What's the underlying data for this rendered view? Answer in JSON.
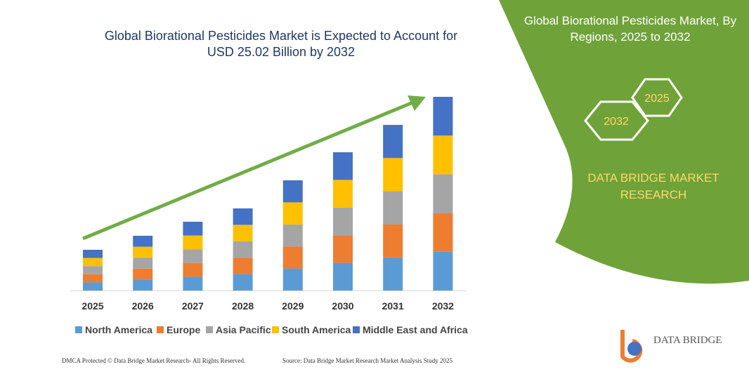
{
  "chart_data": {
    "type": "bar",
    "stacked": true,
    "title": "Global Biorational Pesticides Market is Expected to Account for USD 25.02 Billion by 2032",
    "categories": [
      "2025",
      "2026",
      "2027",
      "2028",
      "2029",
      "2030",
      "2031",
      "2032"
    ],
    "series": [
      {
        "name": "North America",
        "color": "#5b9bd5",
        "values": [
          11.6,
          15.6,
          19.6,
          23.4,
          31.4,
          39.4,
          47.2,
          55.2
        ]
      },
      {
        "name": "Europe",
        "color": "#ed7d31",
        "values": [
          11.6,
          15.6,
          19.6,
          23.4,
          31.4,
          39.4,
          47.2,
          55.2
        ]
      },
      {
        "name": "Asia Pacific",
        "color": "#a5a5a5",
        "values": [
          11.6,
          15.6,
          19.6,
          23.4,
          31.4,
          39.4,
          47.2,
          55.2
        ]
      },
      {
        "name": "South America",
        "color": "#ffc000",
        "values": [
          11.6,
          15.6,
          19.6,
          23.4,
          31.4,
          39.4,
          47.2,
          55.2
        ]
      },
      {
        "name": "Middle East and Africa",
        "color": "#4472c4",
        "values": [
          11.6,
          15.6,
          19.6,
          23.4,
          31.4,
          39.4,
          47.2,
          55.2
        ]
      }
    ]
  },
  "panel": {
    "title": "Global Biorational Pesticides Market, By Regions, 2025 to 2032",
    "hex_small": "2025",
    "hex_large": "2032",
    "brand": "DATA BRIDGE MARKET RESEARCH"
  },
  "logo": "DATA BRIDGE",
  "footer": {
    "left": "DMCA Protected © Data Bridge Market Research- All Rights Reserved.",
    "right": "Source: Data Bridge Market Research Market Analysis Study 2025"
  }
}
